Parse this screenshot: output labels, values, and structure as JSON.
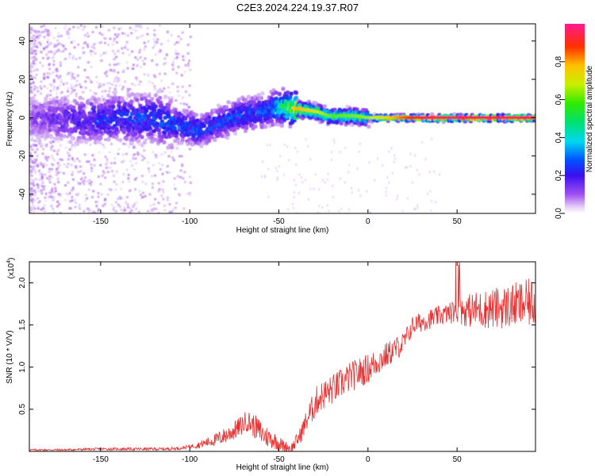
{
  "title": "C2E3.2024.224.19.37.R07",
  "chart_data": [
    {
      "type": "heatmap",
      "xlabel": "Height of straight line (km)",
      "ylabel": "Frequency (Hz)",
      "xlim": [
        -190,
        94
      ],
      "ylim": [
        -50,
        49
      ],
      "xticks": [
        -150,
        -100,
        -50,
        0,
        50
      ],
      "xtick_labels": [
        "-150",
        "-100",
        "-50",
        "0",
        "50"
      ],
      "yticks": [
        -40,
        -20,
        0,
        20,
        40
      ],
      "ytick_labels": [
        "-40",
        "-20",
        "0",
        "20",
        "40"
      ],
      "colorbar": {
        "label": "Normalized spectral amplitude",
        "range": [
          0,
          1
        ],
        "ticks": [
          0.0,
          0.2,
          0.4,
          0.6,
          0.8
        ],
        "tick_labels": [
          "0.0",
          "0.2",
          "0.4",
          "0.6",
          "0.8"
        ]
      },
      "ridge": {
        "x": [
          -190,
          -175,
          -160,
          -150,
          -140,
          -130,
          -120,
          -110,
          -100,
          -95,
          -90,
          -80,
          -70,
          -60,
          -50,
          -42,
          -35,
          -28,
          -22,
          -15,
          -8,
          0,
          10,
          20,
          30,
          50,
          70,
          94
        ],
        "y": [
          0,
          0,
          -1,
          -1,
          0,
          0,
          0,
          -3,
          -5,
          -6,
          -5,
          -1,
          2,
          3,
          6,
          5,
          4,
          3,
          1,
          1,
          1,
          0,
          0,
          0,
          0,
          0,
          0,
          0
        ]
      },
      "ridge_amplitude": {
        "x": [
          -190,
          -150,
          -110,
          -80,
          -55,
          -40,
          -30,
          -20,
          0,
          30,
          94
        ],
        "a": [
          0.12,
          0.25,
          0.3,
          0.28,
          0.3,
          0.75,
          0.65,
          0.55,
          0.6,
          0.9,
          0.9
        ]
      },
      "grid": false
    },
    {
      "type": "line",
      "xlabel": "Height of straight line (km)",
      "ylabel": "SNR (10 * V/V)",
      "y_multiplier": "(x10",
      "y_multiplier_exp": "4",
      "y_multiplier_close": ")",
      "xlim": [
        -190,
        94
      ],
      "ylim": [
        0,
        2.25
      ],
      "xticks": [
        -150,
        -100,
        -50,
        0,
        50
      ],
      "xtick_labels": [
        "-150",
        "-100",
        "-50",
        "0",
        "50"
      ],
      "yticks": [
        0.5,
        1.0,
        1.5,
        2.0
      ],
      "ytick_labels": [
        "0.5",
        "1.0",
        "1.5",
        "2.0"
      ],
      "series": [
        {
          "color": "#e83030",
          "envelope_x": [
            -190,
            -170,
            -150,
            -130,
            -115,
            -105,
            -95,
            -85,
            -78,
            -72,
            -68,
            -63,
            -58,
            -53,
            -48,
            -43,
            -38,
            -33,
            -28,
            -20,
            -10,
            0,
            10,
            20,
            25,
            30,
            40,
            50,
            60,
            70,
            80,
            94
          ],
          "envelope_y": [
            0.02,
            0.02,
            0.03,
            0.03,
            0.03,
            0.04,
            0.08,
            0.15,
            0.22,
            0.3,
            0.38,
            0.3,
            0.2,
            0.15,
            0.08,
            0.04,
            0.2,
            0.45,
            0.65,
            0.75,
            0.9,
            1.0,
            1.15,
            1.3,
            1.5,
            1.55,
            1.62,
            1.68,
            1.7,
            1.72,
            1.75,
            1.8
          ],
          "noise_x": [
            -190,
            -100,
            -80,
            -60,
            -45,
            -38,
            -30,
            0,
            25,
            45,
            60,
            94
          ],
          "noise_y": [
            0.01,
            0.02,
            0.1,
            0.15,
            0.06,
            0.1,
            0.18,
            0.18,
            0.12,
            0.12,
            0.22,
            0.3
          ]
        }
      ],
      "grid": false
    }
  ]
}
